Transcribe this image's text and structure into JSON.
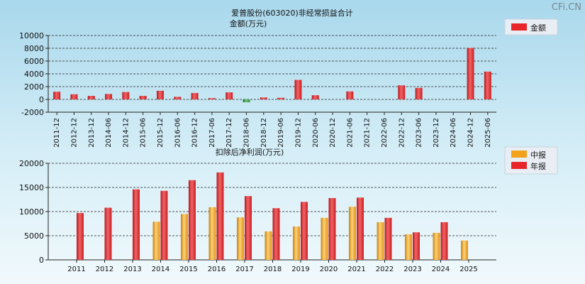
{
  "watermark": "CFi.CN",
  "colors": {
    "red_bar": "#e8262a",
    "red_bar_light": "#f07a7c",
    "neg_bar": "#2f8f3a",
    "neg_bar_light": "#6cc476",
    "orange_bar": "#f4a21c",
    "orange_bar_light": "#fbd27a",
    "legend_bg": "#e9eef5"
  },
  "chart_data": [
    {
      "type": "bar",
      "title": "爱普股份(603020)非经常损益合计",
      "subtitle": "金额(万元)",
      "legend": [
        "金额"
      ],
      "legend_position": "top-right",
      "grid": true,
      "ylim": [
        -2000,
        10000
      ],
      "yticks": [
        -2000,
        0,
        2000,
        4000,
        6000,
        8000,
        10000
      ],
      "categories": [
        "2011-12",
        "2012-12",
        "2013-12",
        "2014-06",
        "2014-12",
        "2015-06",
        "2015-12",
        "2016-06",
        "2016-12",
        "2017-06",
        "2017-12",
        "2018-06",
        "2018-12",
        "2019-06",
        "2019-12",
        "2020-06",
        "2020-12",
        "2021-06",
        "2021-12",
        "2022-06",
        "2022-12",
        "2023-06",
        "2023-12",
        "2024-06",
        "2024-12",
        "2025-06"
      ],
      "series": [
        {
          "name": "金额",
          "values": [
            1200,
            800,
            550,
            850,
            1150,
            550,
            1350,
            400,
            1000,
            200,
            1100,
            -450,
            300,
            250,
            3050,
            650,
            null,
            1250,
            null,
            null,
            2200,
            1800,
            null,
            null,
            8050,
            4350
          ]
        }
      ]
    },
    {
      "type": "bar",
      "title": "扣除后净利润(万元)",
      "legend": [
        "中报",
        "年报"
      ],
      "legend_position": "top-right",
      "grid": true,
      "ylim": [
        0,
        20000
      ],
      "yticks": [
        0,
        5000,
        10000,
        15000,
        20000
      ],
      "categories": [
        "2011",
        "2012",
        "2013",
        "2014",
        "2015",
        "2016",
        "2017",
        "2018",
        "2019",
        "2020",
        "2021",
        "2022",
        "2023",
        "2024",
        "2025"
      ],
      "series": [
        {
          "name": "中报",
          "values": [
            null,
            null,
            null,
            7900,
            9500,
            10900,
            8800,
            5900,
            6900,
            8700,
            11000,
            7800,
            5300,
            5600,
            4000
          ]
        },
        {
          "name": "年报",
          "values": [
            9700,
            10800,
            14600,
            14300,
            16500,
            18100,
            13200,
            10700,
            12000,
            12800,
            12900,
            8700,
            5700,
            7800,
            null
          ]
        }
      ]
    }
  ]
}
